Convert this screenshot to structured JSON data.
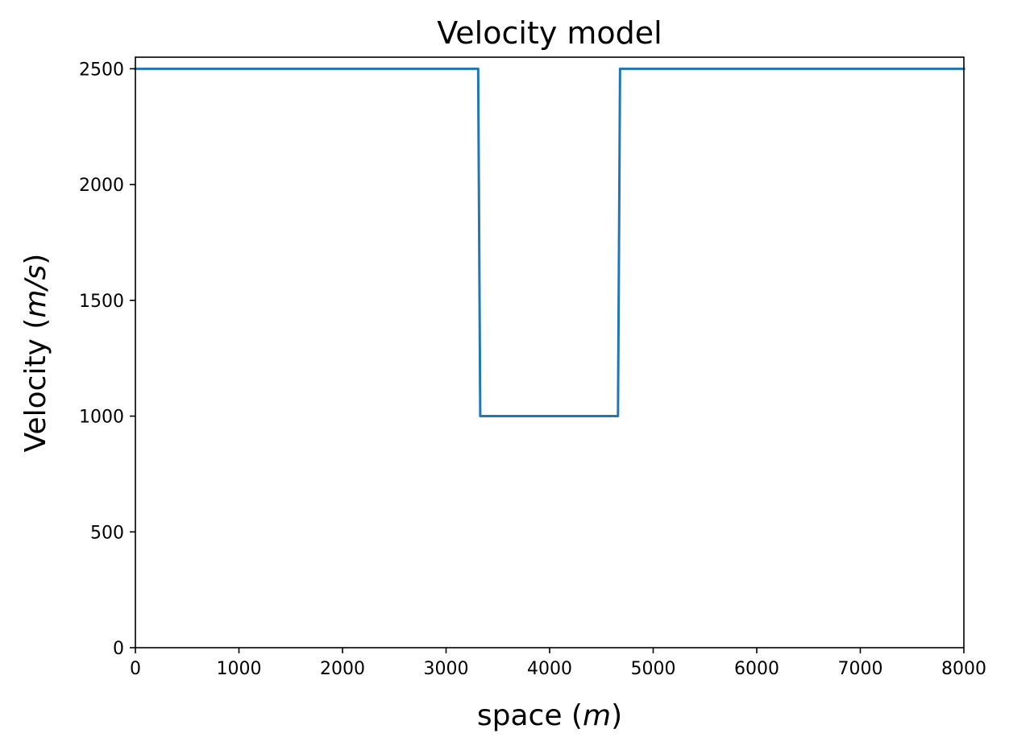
{
  "chart_data": {
    "type": "line",
    "title": "Velocity model",
    "xlabel": "space (m)",
    "ylabel": "Velocity (m/s)",
    "xlabel_parts": {
      "prefix": "space (",
      "var": "m",
      "suffix": ")"
    },
    "ylabel_parts": {
      "prefix": "Velocity (",
      "var": "m/s",
      "suffix": ")"
    },
    "xlim": [
      0,
      8000
    ],
    "ylim": [
      0,
      2550
    ],
    "xticks": [
      0,
      1000,
      2000,
      3000,
      4000,
      5000,
      6000,
      7000,
      8000
    ],
    "yticks": [
      0,
      500,
      1000,
      1500,
      2000,
      2500
    ],
    "grid": false,
    "series": [
      {
        "color": "#1f77b4",
        "x": [
          0,
          3310,
          3330,
          4660,
          4680,
          8000
        ],
        "y": [
          2500,
          2500,
          1000,
          1000,
          2500,
          2500
        ]
      }
    ]
  }
}
